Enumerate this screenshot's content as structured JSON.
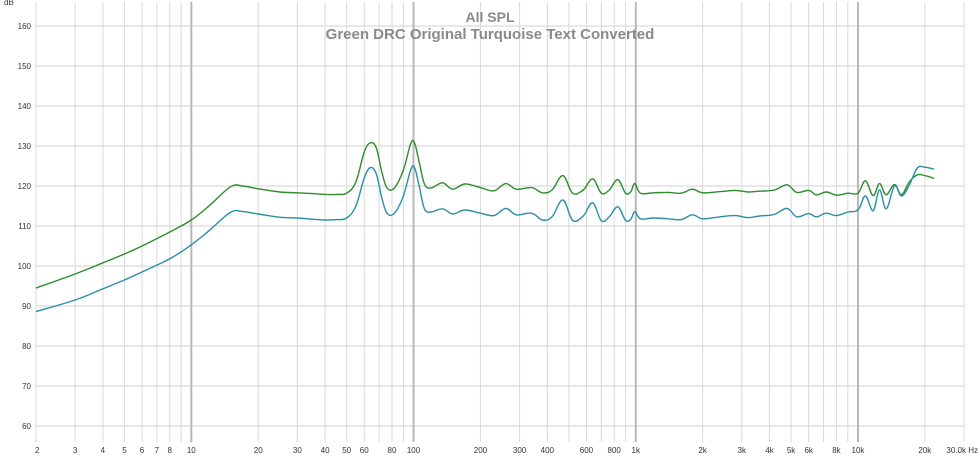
{
  "chart_data": {
    "type": "line",
    "title": "All SPL",
    "subtitle": "Green DRC Original Turquoise Text Converted",
    "ylabel": "dB",
    "xlabel": "Hz",
    "x_scale": "log",
    "xlim": [
      2,
      30000
    ],
    "ylim": [
      56,
      166
    ],
    "grid": true,
    "y_ticks": [
      60,
      70,
      80,
      90,
      100,
      110,
      120,
      130,
      140,
      150,
      160
    ],
    "x_ticks": [
      {
        "value": 2,
        "label": "2"
      },
      {
        "value": 3,
        "label": "3"
      },
      {
        "value": 4,
        "label": "4"
      },
      {
        "value": 5,
        "label": "5"
      },
      {
        "value": 6,
        "label": "6"
      },
      {
        "value": 7,
        "label": "7"
      },
      {
        "value": 8,
        "label": "8"
      },
      {
        "value": 10,
        "label": "10"
      },
      {
        "value": 20,
        "label": "20"
      },
      {
        "value": 30,
        "label": "30"
      },
      {
        "value": 40,
        "label": "40"
      },
      {
        "value": 50,
        "label": "50"
      },
      {
        "value": 60,
        "label": "60"
      },
      {
        "value": 80,
        "label": "80"
      },
      {
        "value": 100,
        "label": "100"
      },
      {
        "value": 200,
        "label": "200"
      },
      {
        "value": 300,
        "label": "300"
      },
      {
        "value": 400,
        "label": "400"
      },
      {
        "value": 600,
        "label": "600"
      },
      {
        "value": 800,
        "label": "800"
      },
      {
        "value": 1000,
        "label": "1k"
      },
      {
        "value": 2000,
        "label": "2k"
      },
      {
        "value": 3000,
        "label": "3k"
      },
      {
        "value": 4000,
        "label": "4k"
      },
      {
        "value": 5000,
        "label": "5k"
      },
      {
        "value": 6000,
        "label": "6k"
      },
      {
        "value": 8000,
        "label": "8k"
      },
      {
        "value": 10000,
        "label": "10k"
      },
      {
        "value": 20000,
        "label": "20k"
      },
      {
        "value": 30000,
        "label": "30.0k Hz"
      }
    ],
    "major_x_gridlines": [
      10,
      100,
      1000,
      10000
    ],
    "series": [
      {
        "color": "#2e8b2e",
        "points": [
          [
            2,
            94.5
          ],
          [
            3,
            98.0
          ],
          [
            4,
            100.8
          ],
          [
            5,
            103.0
          ],
          [
            6,
            105.0
          ],
          [
            8,
            108.5
          ],
          [
            10,
            111.5
          ],
          [
            12,
            115.0
          ],
          [
            15,
            119.8
          ],
          [
            17,
            120.0
          ],
          [
            20,
            119.3
          ],
          [
            25,
            118.5
          ],
          [
            30,
            118.3
          ],
          [
            35,
            118.1
          ],
          [
            40,
            117.9
          ],
          [
            45,
            117.9
          ],
          [
            50,
            118.2
          ],
          [
            55,
            121.0
          ],
          [
            60,
            128.5
          ],
          [
            64,
            130.8
          ],
          [
            68,
            129.5
          ],
          [
            72,
            123.5
          ],
          [
            76,
            119.5
          ],
          [
            82,
            119.5
          ],
          [
            90,
            124.0
          ],
          [
            97,
            130.5
          ],
          [
            101,
            130.8
          ],
          [
            106,
            126.0
          ],
          [
            112,
            120.5
          ],
          [
            120,
            119.5
          ],
          [
            135,
            120.8
          ],
          [
            150,
            119.2
          ],
          [
            170,
            120.5
          ],
          [
            200,
            119.6
          ],
          [
            230,
            118.8
          ],
          [
            260,
            120.6
          ],
          [
            290,
            119.2
          ],
          [
            340,
            119.6
          ],
          [
            380,
            118.3
          ],
          [
            420,
            119.0
          ],
          [
            470,
            122.6
          ],
          [
            520,
            118.2
          ],
          [
            580,
            119.0
          ],
          [
            640,
            121.8
          ],
          [
            700,
            118.2
          ],
          [
            760,
            119.0
          ],
          [
            830,
            121.6
          ],
          [
            900,
            118.2
          ],
          [
            950,
            118.6
          ],
          [
            990,
            120.6
          ],
          [
            1050,
            118.2
          ],
          [
            1200,
            118.3
          ],
          [
            1400,
            118.4
          ],
          [
            1600,
            118.2
          ],
          [
            1800,
            119.2
          ],
          [
            2000,
            118.3
          ],
          [
            2400,
            118.6
          ],
          [
            2800,
            118.9
          ],
          [
            3200,
            118.5
          ],
          [
            3600,
            118.7
          ],
          [
            4200,
            119.0
          ],
          [
            4800,
            120.3
          ],
          [
            5300,
            118.4
          ],
          [
            6000,
            118.9
          ],
          [
            6500,
            117.8
          ],
          [
            7200,
            118.5
          ],
          [
            8000,
            117.7
          ],
          [
            9000,
            118.2
          ],
          [
            10000,
            118.2
          ],
          [
            10800,
            121.3
          ],
          [
            11700,
            117.6
          ],
          [
            12500,
            120.6
          ],
          [
            13400,
            117.8
          ],
          [
            14600,
            120.4
          ],
          [
            15700,
            117.8
          ],
          [
            17000,
            121.0
          ],
          [
            18500,
            122.8
          ],
          [
            20000,
            122.6
          ],
          [
            22000,
            121.9
          ]
        ]
      },
      {
        "color": "#2a8fa6",
        "points": [
          [
            2,
            88.6
          ],
          [
            3,
            91.5
          ],
          [
            4,
            94.3
          ],
          [
            5,
            96.5
          ],
          [
            6,
            98.5
          ],
          [
            8,
            101.8
          ],
          [
            10,
            105.3
          ],
          [
            12,
            108.8
          ],
          [
            15,
            113.4
          ],
          [
            17,
            113.6
          ],
          [
            20,
            113.0
          ],
          [
            25,
            112.2
          ],
          [
            30,
            112.0
          ],
          [
            35,
            111.7
          ],
          [
            40,
            111.5
          ],
          [
            45,
            111.6
          ],
          [
            50,
            112.0
          ],
          [
            55,
            115.0
          ],
          [
            60,
            122.0
          ],
          [
            64,
            124.6
          ],
          [
            68,
            123.0
          ],
          [
            72,
            117.0
          ],
          [
            76,
            113.2
          ],
          [
            82,
            113.2
          ],
          [
            90,
            117.5
          ],
          [
            97,
            124.0
          ],
          [
            101,
            124.6
          ],
          [
            106,
            120.0
          ],
          [
            112,
            114.3
          ],
          [
            120,
            113.5
          ],
          [
            135,
            114.3
          ],
          [
            150,
            113.0
          ],
          [
            170,
            114.0
          ],
          [
            200,
            113.2
          ],
          [
            230,
            112.6
          ],
          [
            260,
            114.4
          ],
          [
            290,
            112.8
          ],
          [
            340,
            113.2
          ],
          [
            380,
            111.5
          ],
          [
            420,
            112.3
          ],
          [
            470,
            116.5
          ],
          [
            520,
            111.4
          ],
          [
            580,
            112.5
          ],
          [
            640,
            115.8
          ],
          [
            700,
            111.3
          ],
          [
            760,
            112.3
          ],
          [
            830,
            114.8
          ],
          [
            900,
            111.4
          ],
          [
            950,
            111.7
          ],
          [
            990,
            113.6
          ],
          [
            1050,
            111.8
          ],
          [
            1200,
            112.0
          ],
          [
            1400,
            111.8
          ],
          [
            1600,
            111.6
          ],
          [
            1800,
            112.8
          ],
          [
            2000,
            111.8
          ],
          [
            2400,
            112.3
          ],
          [
            2800,
            112.6
          ],
          [
            3200,
            112.1
          ],
          [
            3600,
            112.5
          ],
          [
            4200,
            112.9
          ],
          [
            4800,
            114.4
          ],
          [
            5300,
            112.3
          ],
          [
            6000,
            113.1
          ],
          [
            6500,
            112.3
          ],
          [
            7200,
            113.2
          ],
          [
            8000,
            112.6
          ],
          [
            9000,
            113.5
          ],
          [
            10000,
            114.0
          ],
          [
            10800,
            117.5
          ],
          [
            11700,
            113.8
          ],
          [
            12500,
            119.0
          ],
          [
            13400,
            114.3
          ],
          [
            14600,
            120.0
          ],
          [
            15700,
            117.5
          ],
          [
            17000,
            120.2
          ],
          [
            18500,
            124.5
          ],
          [
            20000,
            124.7
          ],
          [
            22000,
            124.2
          ]
        ]
      }
    ]
  }
}
